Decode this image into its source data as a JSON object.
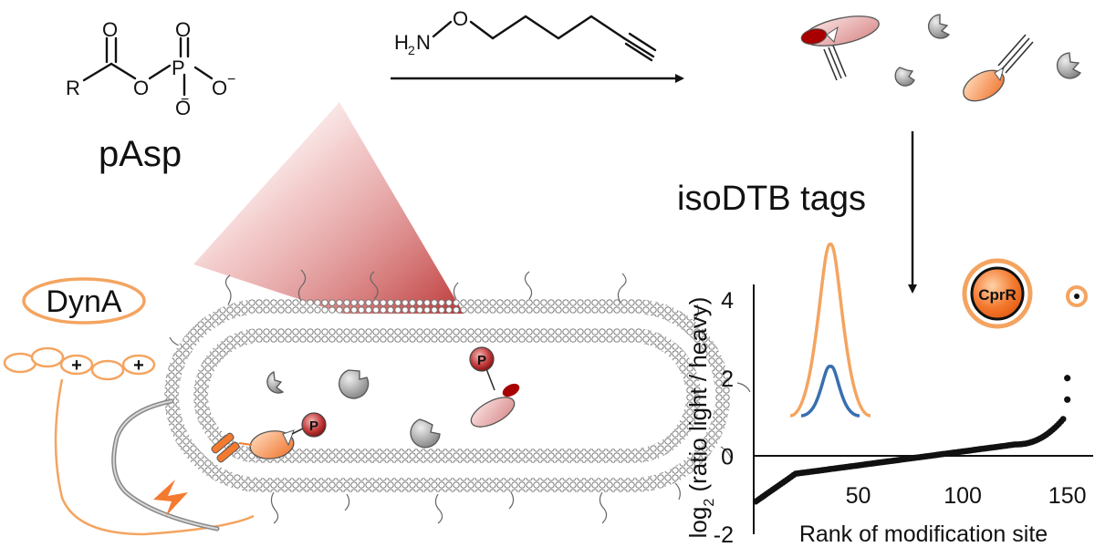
{
  "molecule": {
    "r_group": "R",
    "o_carbonyl": "O",
    "o_bridge": "O",
    "phosphorus": "P",
    "o_p_top": "O",
    "o_minus_right": "O",
    "o_minus_bottom": "O",
    "charge": "−",
    "name": "pAsp"
  },
  "reagent": {
    "h": "H",
    "sub2": "2",
    "n": "N",
    "o": "O"
  },
  "labels": {
    "isodtb": "isoDTB tags",
    "dyna": "DynA",
    "plus": "+",
    "p_badge": "P",
    "cprr": "CprR"
  },
  "colors": {
    "orange": "#f4a460",
    "orange_fill": "#f47a30",
    "red": "#b71c1c",
    "gray": "#8c8c8c",
    "blue": "#3a6fb0"
  },
  "chart_data": {
    "type": "scatter",
    "xlabel": "Rank of modification site",
    "ylabel_main": "log",
    "ylabel_sub": "2",
    "ylabel_rest": " (ratio light / heavy)",
    "xticks": [
      "50",
      "100",
      "150"
    ],
    "xtick_values": [
      50,
      100,
      150
    ],
    "yticks": [
      "4",
      "2",
      "0",
      "-2"
    ],
    "ytick_values": [
      4,
      2,
      0,
      -2
    ],
    "xlim": [
      0,
      158
    ],
    "ylim": [
      -2,
      4.4
    ],
    "outliers": [
      {
        "x": 150,
        "y": 2.0
      },
      {
        "x": 150,
        "y": 1.45
      }
    ]
  }
}
